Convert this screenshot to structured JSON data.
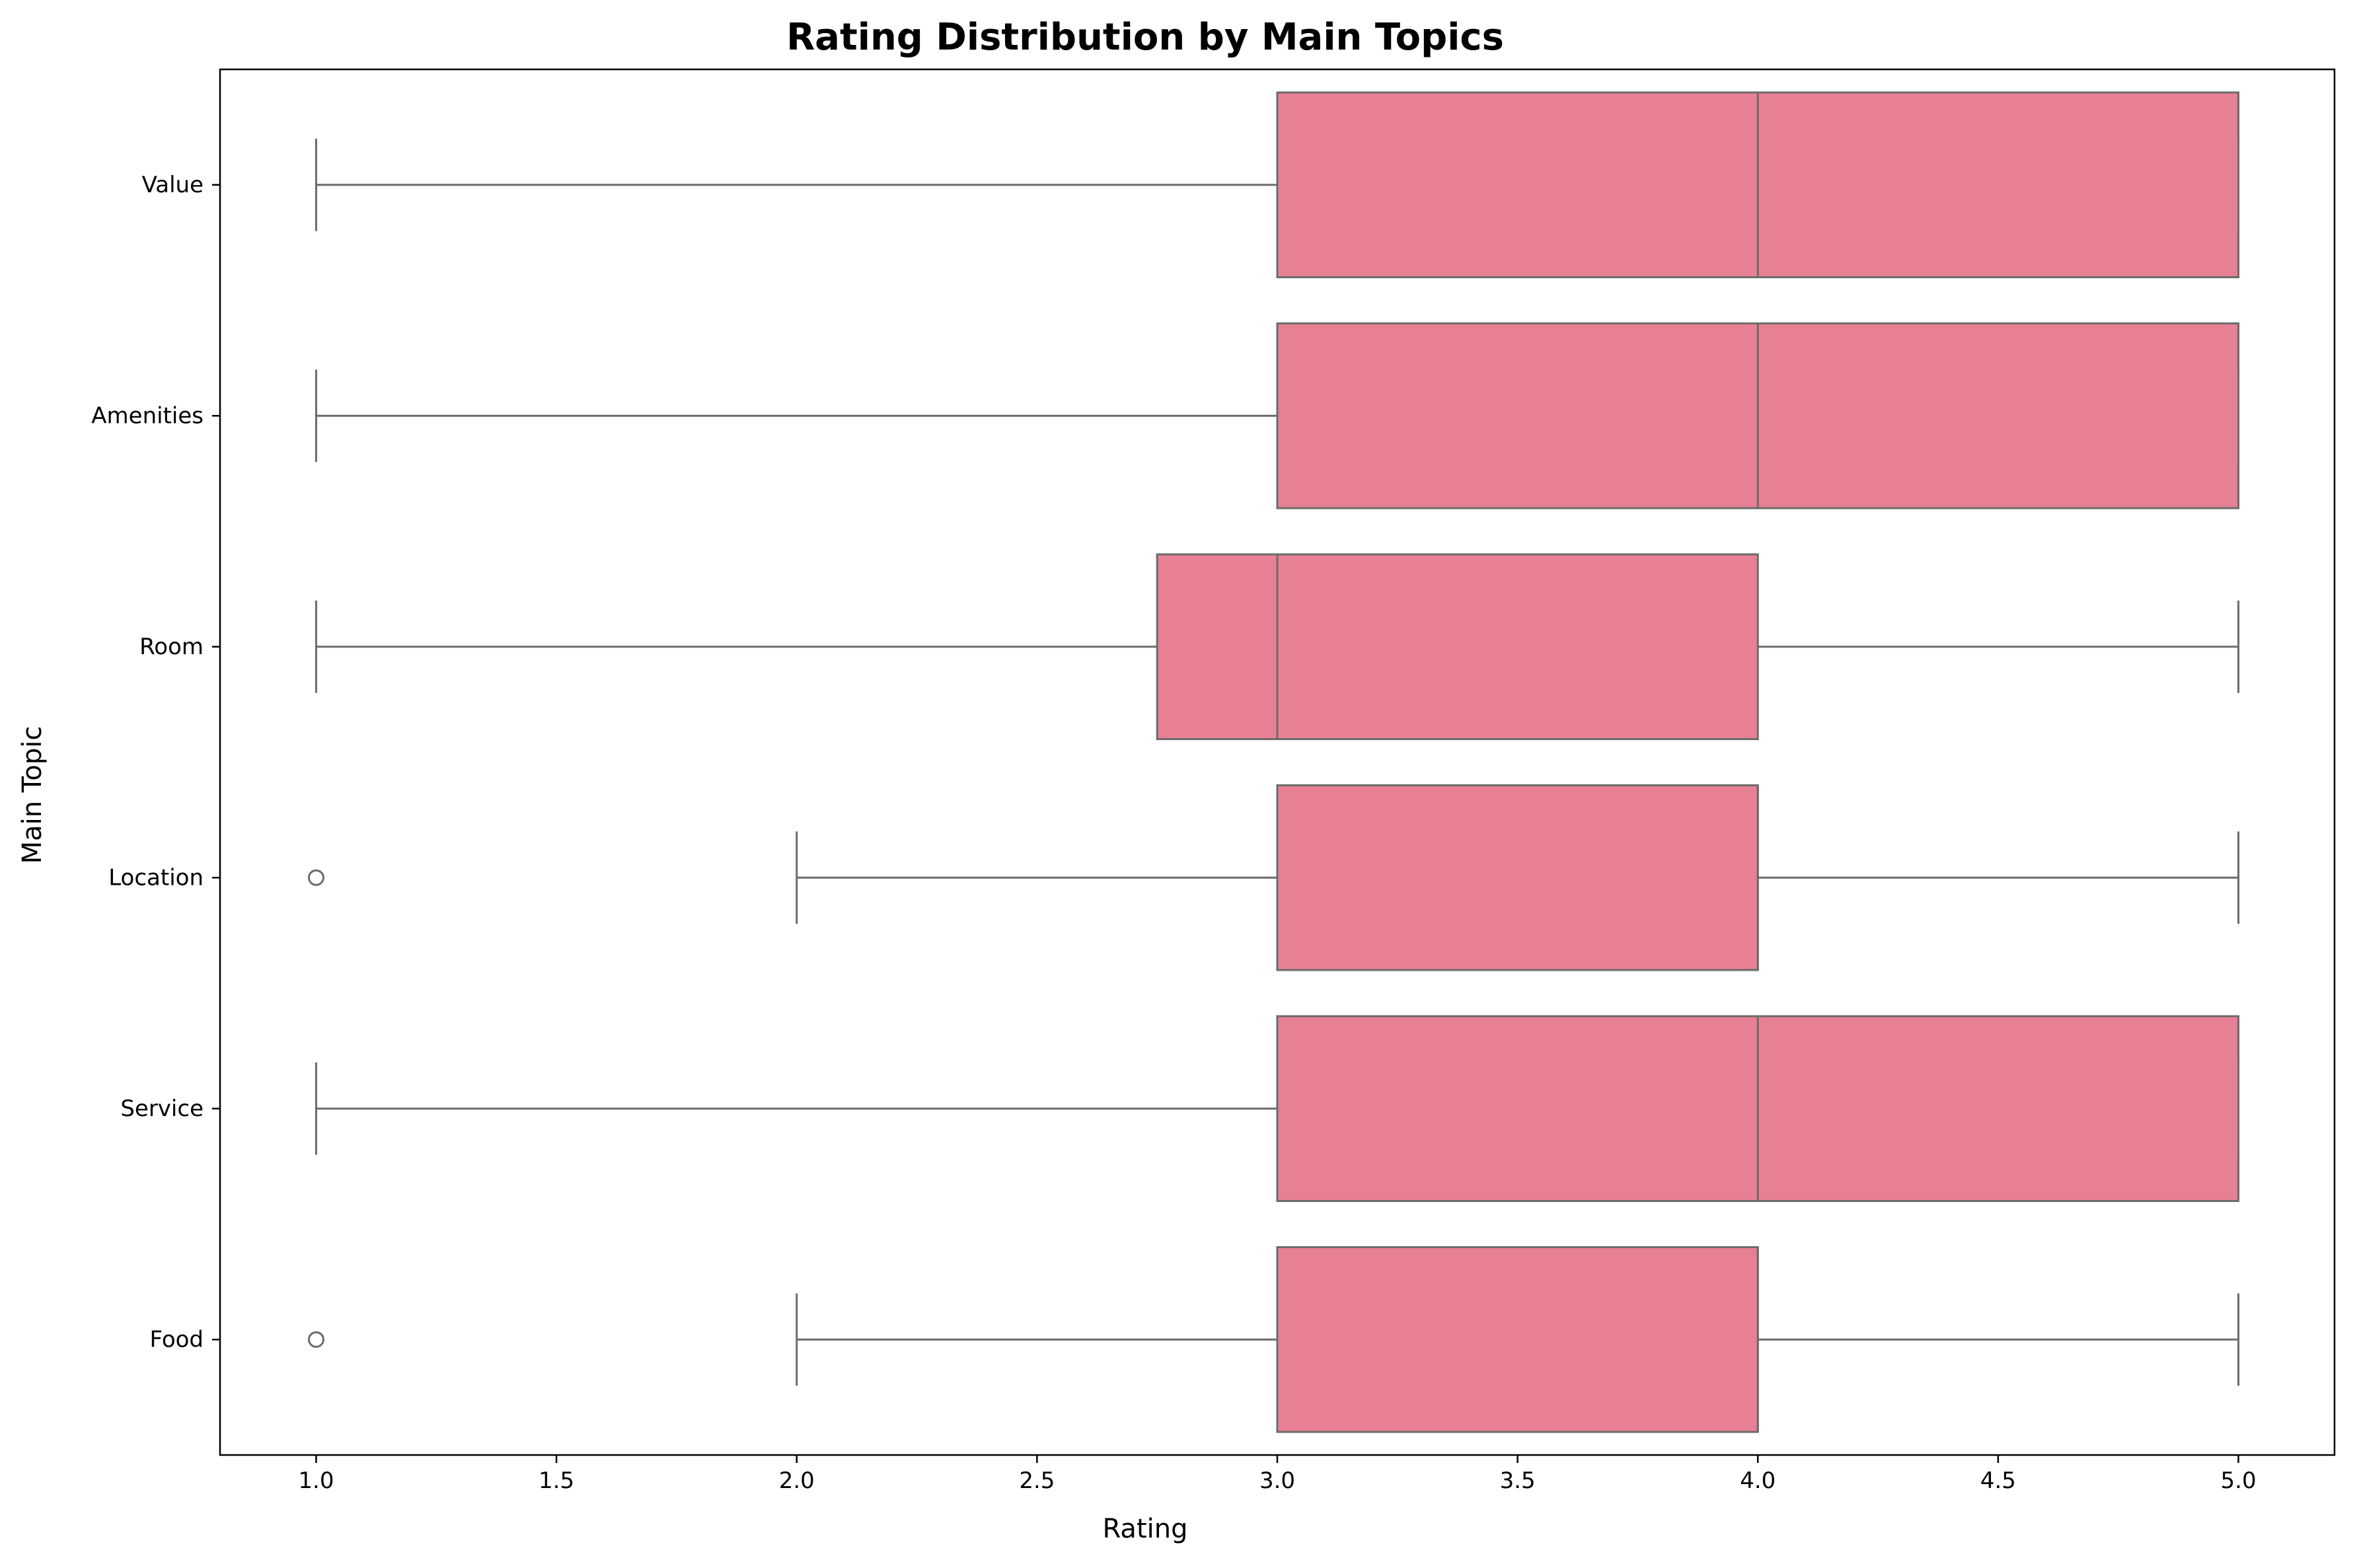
{
  "chart_data": {
    "type": "boxplot",
    "orientation": "horizontal",
    "title": "Rating Distribution by Main Topics",
    "xlabel": "Rating",
    "ylabel": "Main Topic",
    "xlim": [
      0.8,
      5.2
    ],
    "xticks": [
      1.0,
      1.5,
      2.0,
      2.5,
      3.0,
      3.5,
      4.0,
      4.5,
      5.0
    ],
    "xtick_labels": [
      "1.0",
      "1.5",
      "2.0",
      "2.5",
      "3.0",
      "3.5",
      "4.0",
      "4.5",
      "5.0"
    ],
    "grid": false,
    "legend": "none",
    "colors": {
      "box_fill": "#e88093",
      "line": "#6b6b6b",
      "frame": "#000000"
    },
    "categories": [
      "Value",
      "Amenities",
      "Room",
      "Location",
      "Service",
      "Food"
    ],
    "boxes": [
      {
        "category": "Value",
        "whisker_low": 1,
        "q1": 3,
        "median": 4,
        "q3": 5,
        "whisker_high": 5,
        "outliers": []
      },
      {
        "category": "Amenities",
        "whisker_low": 1,
        "q1": 3,
        "median": 4,
        "q3": 5,
        "whisker_high": 5,
        "outliers": []
      },
      {
        "category": "Room",
        "whisker_low": 1,
        "q1": 2.75,
        "median": 3,
        "q3": 4,
        "whisker_high": 5,
        "outliers": []
      },
      {
        "category": "Location",
        "whisker_low": 2,
        "q1": 3,
        "median": 4,
        "q3": 4,
        "whisker_high": 5,
        "outliers": [
          1
        ]
      },
      {
        "category": "Service",
        "whisker_low": 1,
        "q1": 3,
        "median": 4,
        "q3": 5,
        "whisker_high": 5,
        "outliers": []
      },
      {
        "category": "Food",
        "whisker_low": 2,
        "q1": 3,
        "median": 4,
        "q3": 4,
        "whisker_high": 5,
        "outliers": [
          1
        ]
      }
    ]
  }
}
